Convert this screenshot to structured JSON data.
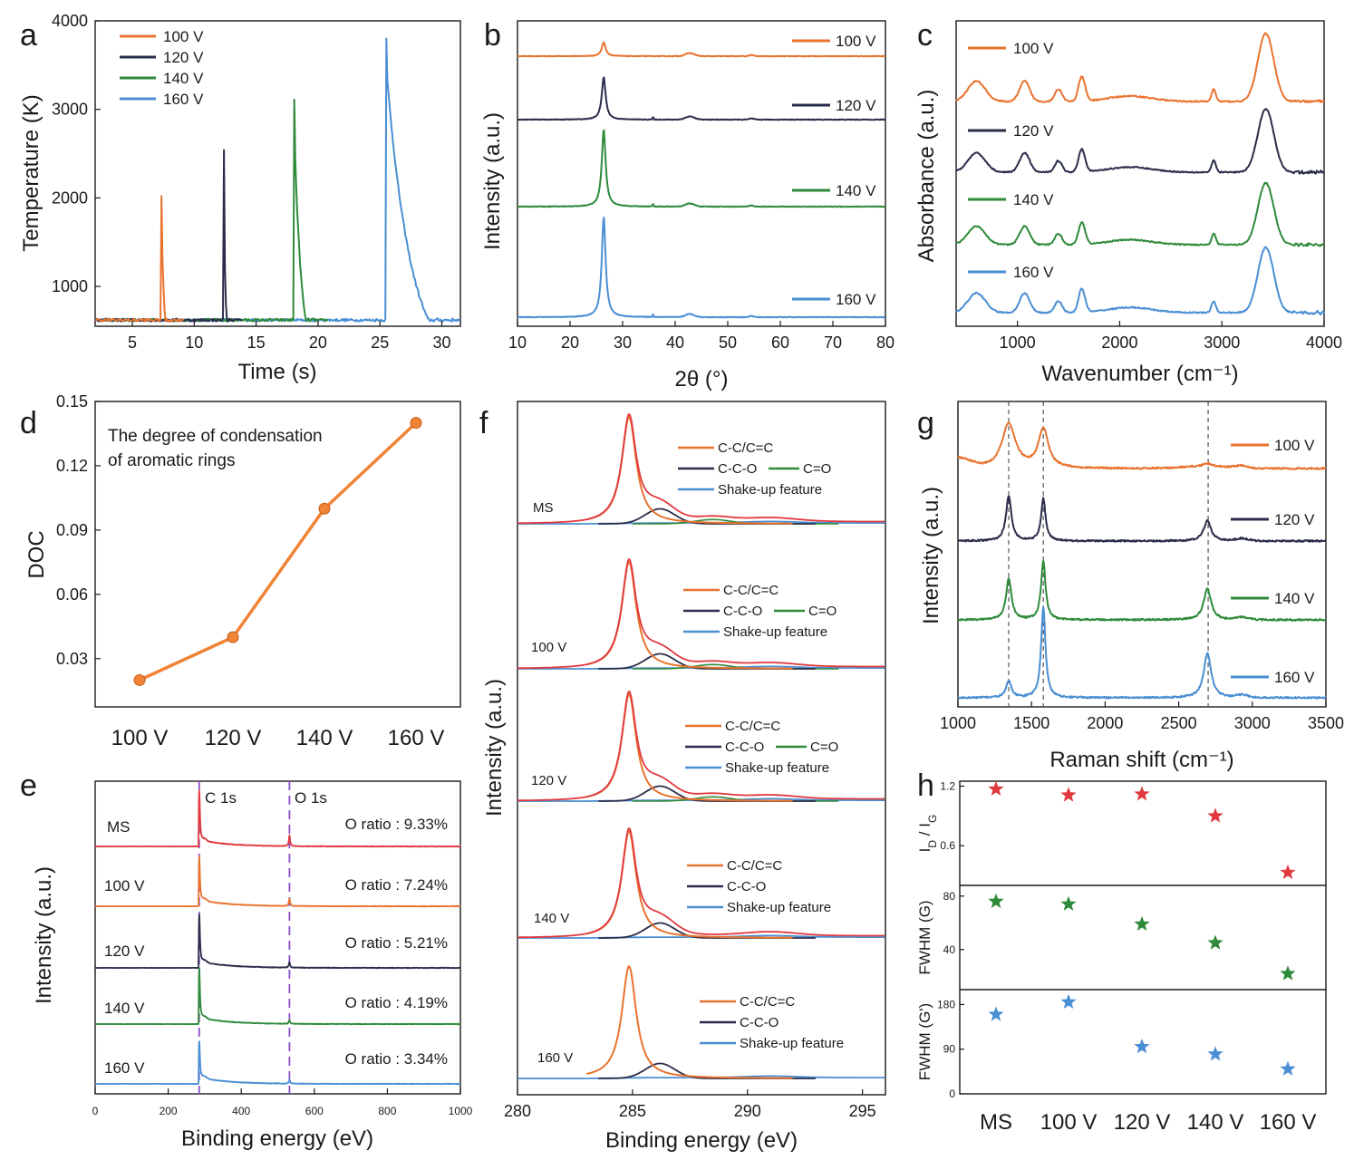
{
  "colors": {
    "v100": "#e8732f",
    "v120": "#2a2d4a",
    "v140": "#2f8a3a",
    "v160": "#4a8ed3",
    "ms": "#e0393e",
    "doc": "#f08336",
    "cO": "#8b4fc9",
    "star_red": "#e0393e",
    "star_green": "#2f8a3a",
    "star_blue": "#4a8ed3"
  },
  "chart_data": [
    {
      "panel": "a",
      "type": "line",
      "xlabel": "Time (s)",
      "ylabel": "Temperature (K)",
      "xlim": [
        2,
        31.5
      ],
      "ylim": [
        550,
        4000
      ],
      "xticks": [
        "5",
        "10",
        "15",
        "20",
        "25",
        "30"
      ],
      "yticks": [
        "1000",
        "2000",
        "3000",
        "4000"
      ],
      "legend_position": "top-left",
      "baseline_K": 620,
      "series": [
        {
          "name": "100 V",
          "color_key": "v100",
          "peak_time_s": 7.4,
          "peak_K": 2020,
          "shoulder_K": 1500,
          "end_s": 8.2
        },
        {
          "name": "120 V",
          "color_key": "v120",
          "peak_time_s": 12.4,
          "peak_K": 2540,
          "shoulder_K": 1900,
          "end_s": 12.9
        },
        {
          "name": "140 V",
          "color_key": "v140",
          "peak_time_s": 18.1,
          "peak_K": 3110,
          "shoulder_K": 2680,
          "end_s": 19.8
        },
        {
          "name": "160 V",
          "color_key": "v160",
          "peak_time_s": 25.5,
          "peak_K": 3800,
          "shoulder_K": 3500,
          "end_s": 31
        }
      ]
    },
    {
      "panel": "b",
      "type": "line",
      "xlabel": "2θ (°)",
      "ylabel": "Intensity (a.u.)",
      "xlim": [
        10,
        80
      ],
      "xticks": [
        "10",
        "20",
        "30",
        "40",
        "50",
        "60",
        "70",
        "80"
      ],
      "series": [
        {
          "name": "100 V",
          "color_key": "v100",
          "peak_2theta": 26.4,
          "peak_rel": 0.18
        },
        {
          "name": "120 V",
          "color_key": "v120",
          "peak_2theta": 26.4,
          "peak_rel": 0.55
        },
        {
          "name": "140 V",
          "color_key": "v140",
          "peak_2theta": 26.4,
          "peak_rel": 1.0
        },
        {
          "name": "160 V",
          "color_key": "v160",
          "peak_2theta": 26.4,
          "peak_rel": 1.3
        }
      ]
    },
    {
      "panel": "c",
      "type": "line",
      "xlabel": "Wavenumber (cm⁻¹)",
      "ylabel": "Absorbance (a.u.)",
      "xlim": [
        400,
        4000
      ],
      "xticks": [
        "1000",
        "2000",
        "3000",
        "4000"
      ],
      "peaks_cm": [
        580,
        1060,
        1630,
        2920,
        3430
      ],
      "series": [
        {
          "name": "100 V",
          "color_key": "v100"
        },
        {
          "name": "120 V",
          "color_key": "v120"
        },
        {
          "name": "140 V",
          "color_key": "v140"
        },
        {
          "name": "160 V",
          "color_key": "v160"
        }
      ]
    },
    {
      "panel": "d",
      "type": "line",
      "ylabel": "DOC",
      "annotation": [
        "The degree of condensation",
        "of aromatic rings"
      ],
      "categories": [
        "100 V",
        "120 V",
        "140 V",
        "160 V"
      ],
      "values": [
        0.02,
        0.04,
        0.1,
        0.14
      ],
      "ylim": [
        0.0075,
        0.15
      ],
      "yticks": [
        "0.03",
        "0.06",
        "0.09",
        "0.12",
        "0.15"
      ]
    },
    {
      "panel": "e",
      "type": "line",
      "xlabel": "Binding energy (eV)",
      "ylabel": "Intensity (a.u.)",
      "xlim": [
        0,
        1000
      ],
      "xticks": [
        "0",
        "200",
        "400",
        "600",
        "800",
        "1000"
      ],
      "markers": [
        {
          "label": "C 1s",
          "x": 284.8
        },
        {
          "label": "O 1s",
          "x": 532
        }
      ],
      "series": [
        {
          "name": "MS",
          "color_key": "ms",
          "ratio": "O ratio : 9.33%"
        },
        {
          "name": "100 V",
          "color_key": "v100",
          "ratio": "O ratio : 7.24%"
        },
        {
          "name": "120 V",
          "color_key": "v120",
          "ratio": "O ratio : 5.21%"
        },
        {
          "name": "140 V",
          "color_key": "v140",
          "ratio": "O ratio : 4.19%"
        },
        {
          "name": "160 V",
          "color_key": "v160",
          "ratio": "O ratio : 3.34%"
        }
      ]
    },
    {
      "panel": "f",
      "type": "line",
      "xlabel": "Binding energy (eV)",
      "ylabel": "Intensity (a.u.)",
      "xlim": [
        280,
        296
      ],
      "xticks": [
        "280",
        "285",
        "290",
        "295"
      ],
      "components": {
        "cc": "C-C/C=C",
        "cco": "C-C-O",
        "co": "C=O",
        "shake": "Shake-up feature"
      },
      "samples": [
        {
          "name": "MS",
          "envelope_key": "ms",
          "has_CO": true,
          "cc_amp": 1.0
        },
        {
          "name": "100 V",
          "envelope_key": "ms",
          "has_CO": true,
          "cc_amp": 1.0
        },
        {
          "name": "120 V",
          "envelope_key": "ms",
          "has_CO": true,
          "cc_amp": 1.0
        },
        {
          "name": "140 V",
          "envelope_key": "ms",
          "has_CO": false,
          "cc_amp": 1.0
        },
        {
          "name": "160 V",
          "envelope_key": "ms",
          "has_CO": false,
          "cc_amp": 1.0
        }
      ]
    },
    {
      "panel": "g",
      "type": "line",
      "xlabel": "Raman shift (cm⁻¹)",
      "ylabel": "Intensity (a.u.)",
      "xlim": [
        1000,
        3500
      ],
      "xticks": [
        "1000",
        "1500",
        "2000",
        "2500",
        "3000",
        "3500"
      ],
      "dashed_lines_cm": [
        1345,
        1580,
        2700
      ],
      "series": [
        {
          "name": "100 V",
          "color_key": "v100",
          "D": 0.55,
          "G": 0.48,
          "G2": 0.03
        },
        {
          "name": "120 V",
          "color_key": "v120",
          "D": 0.55,
          "G": 0.52,
          "G2": 0.25
        },
        {
          "name": "140 V",
          "color_key": "v140",
          "D": 0.5,
          "G": 0.72,
          "G2": 0.38
        },
        {
          "name": "160 V",
          "color_key": "v160",
          "D": 0.2,
          "G": 1.1,
          "G2": 0.55
        }
      ]
    },
    {
      "panel": "h",
      "type": "scatter",
      "categories": [
        "MS",
        "100 V",
        "120 V",
        "140 V",
        "160 V"
      ],
      "subplots": [
        {
          "ylabel_main": "I",
          "ylabel_sub1": "D",
          "ylabel_mid": " / I",
          "ylabel_sub2": "G",
          "color_key": "star_red",
          "ylim": [
            0.2,
            1.25
          ],
          "yticks": [
            "0.6",
            "1.2"
          ],
          "values": [
            1.17,
            1.11,
            1.12,
            0.9,
            0.33
          ]
        },
        {
          "ylabel_main": "FWHM (G)",
          "color_key": "star_green",
          "ylim": [
            10,
            88
          ],
          "yticks": [
            "40",
            "80"
          ],
          "values": [
            76,
            74,
            59,
            45,
            22
          ]
        },
        {
          "ylabel_main": "FWHM (G')",
          "color_key": "star_blue",
          "ylim": [
            0,
            210
          ],
          "yticks": [
            "0",
            "90",
            "180"
          ],
          "values": [
            160,
            185,
            95,
            80,
            50
          ]
        }
      ]
    }
  ]
}
